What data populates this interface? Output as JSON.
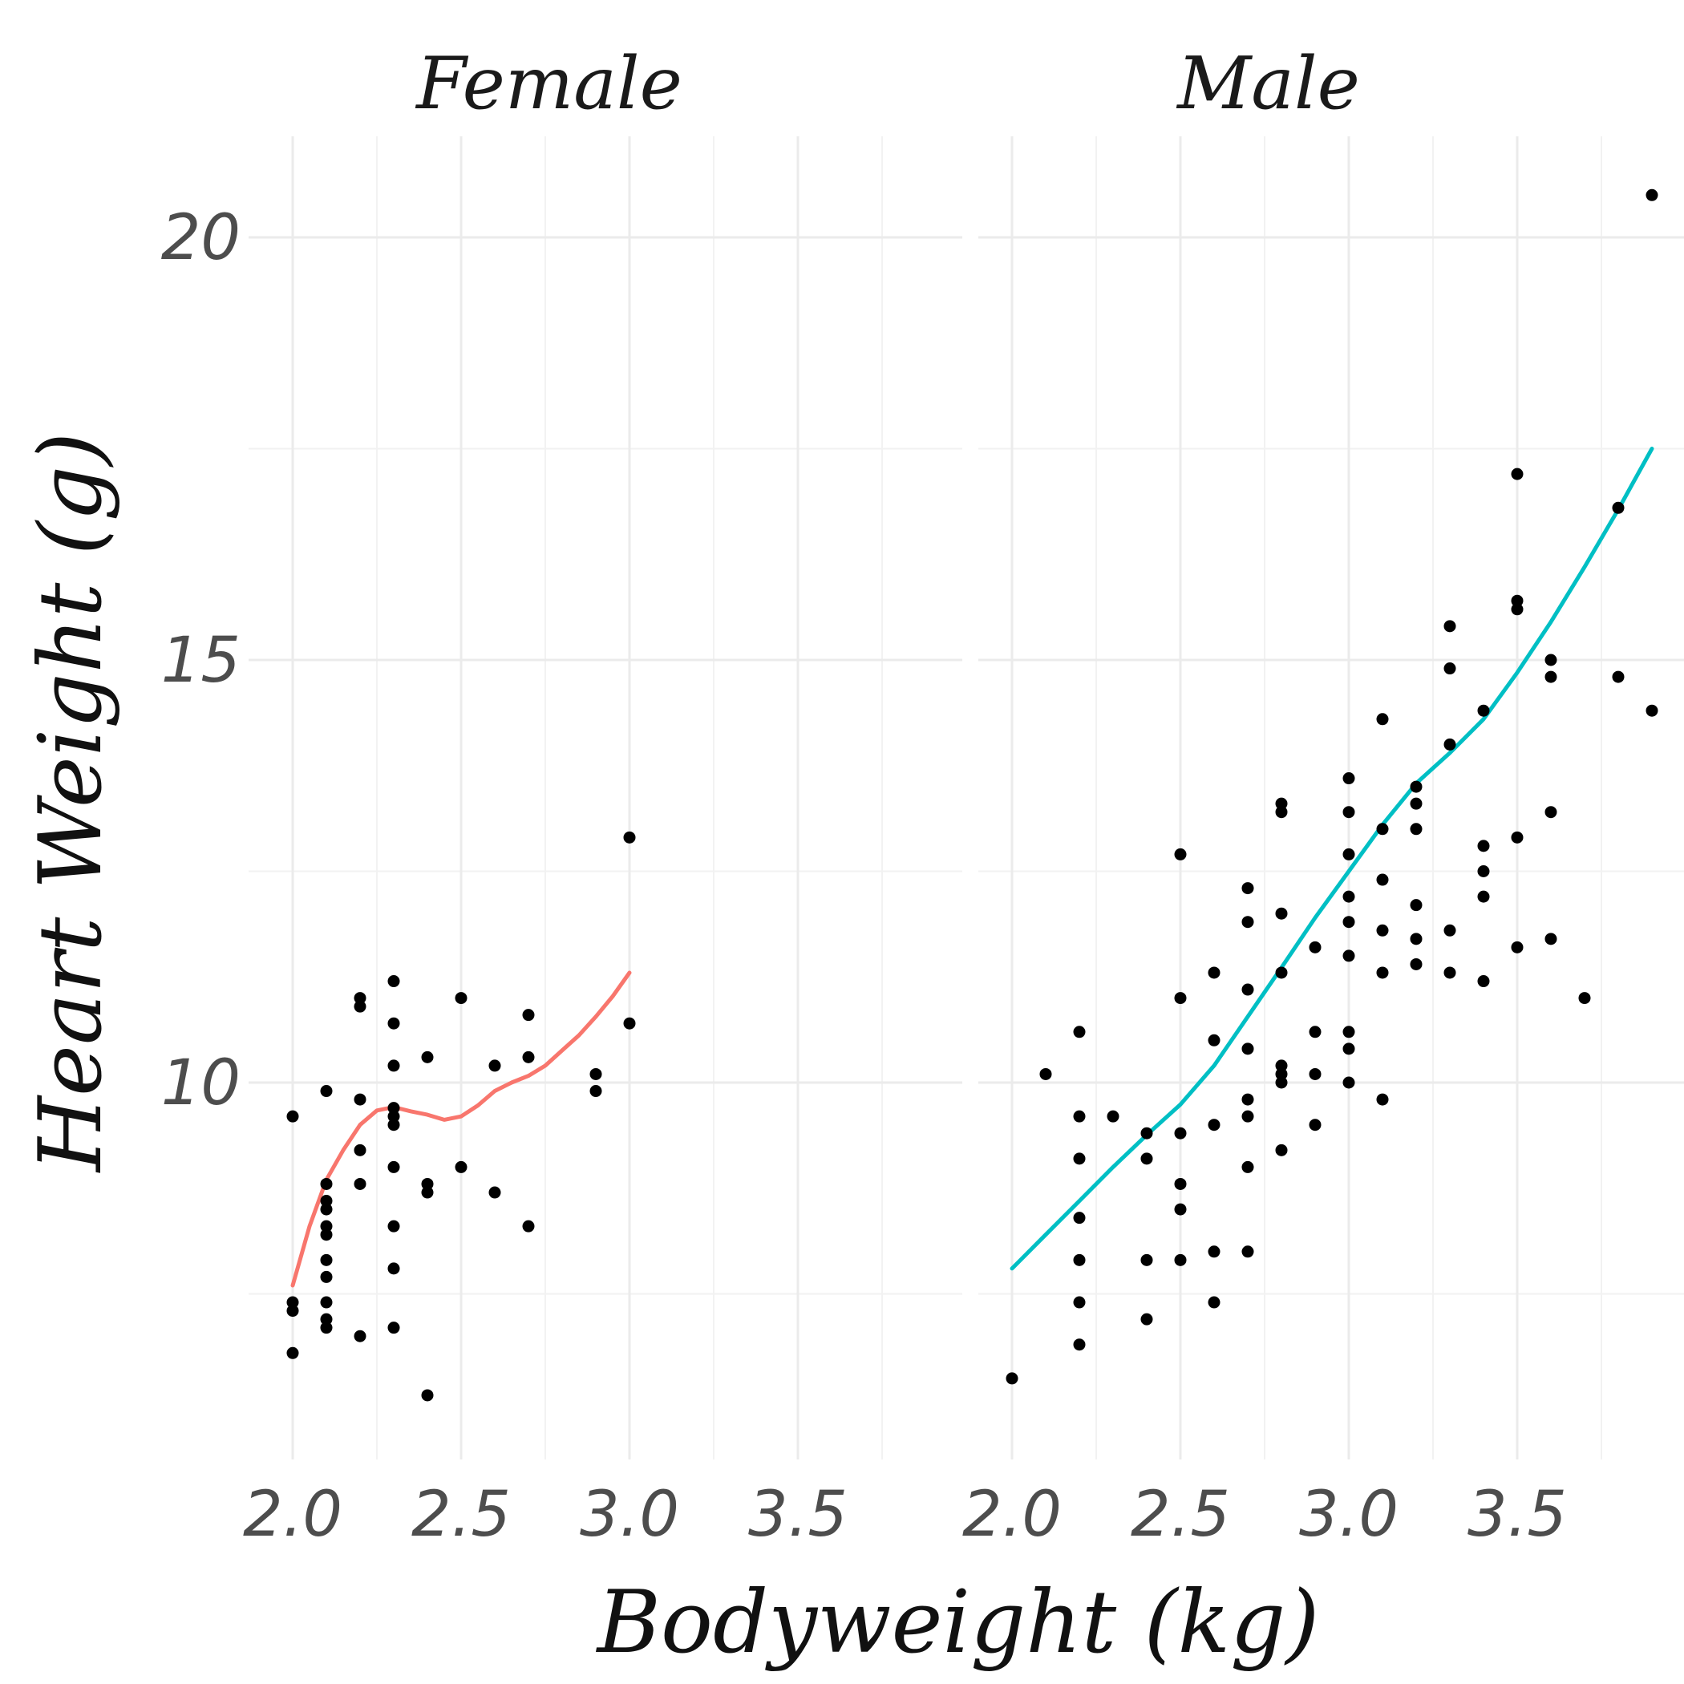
{
  "chart_data": {
    "type": "scatter",
    "xlabel": "Bodyweight (kg)",
    "ylabel": "Heart Weight (g)",
    "x_ticks": [
      "2.0",
      "2.5",
      "3.0",
      "3.5"
    ],
    "y_ticks": [
      "10",
      "15",
      "20"
    ],
    "xlim": [
      2.0,
      3.9
    ],
    "ylim": [
      6.3,
      20.5
    ],
    "grid": true,
    "facets": [
      {
        "name": "Female",
        "color": "#F8766D",
        "points": [
          [
            2.0,
            9.6
          ],
          [
            2.0,
            7.4
          ],
          [
            2.0,
            7.3
          ],
          [
            2.0,
            6.8
          ],
          [
            2.1,
            8.8
          ],
          [
            2.1,
            8.6
          ],
          [
            2.1,
            8.5
          ],
          [
            2.1,
            8.3
          ],
          [
            2.1,
            8.2
          ],
          [
            2.1,
            7.9
          ],
          [
            2.1,
            7.7
          ],
          [
            2.1,
            7.4
          ],
          [
            2.1,
            7.2
          ],
          [
            2.1,
            7.1
          ],
          [
            2.1,
            9.9
          ],
          [
            2.2,
            11.0
          ],
          [
            2.2,
            10.9
          ],
          [
            2.2,
            9.8
          ],
          [
            2.2,
            9.2
          ],
          [
            2.2,
            8.8
          ],
          [
            2.2,
            7.0
          ],
          [
            2.3,
            11.2
          ],
          [
            2.3,
            10.7
          ],
          [
            2.3,
            10.2
          ],
          [
            2.3,
            9.7
          ],
          [
            2.3,
            9.6
          ],
          [
            2.3,
            9.5
          ],
          [
            2.3,
            9.0
          ],
          [
            2.3,
            8.3
          ],
          [
            2.3,
            7.8
          ],
          [
            2.3,
            7.1
          ],
          [
            2.4,
            10.3
          ],
          [
            2.4,
            8.8
          ],
          [
            2.4,
            8.7
          ],
          [
            2.4,
            6.3
          ],
          [
            2.5,
            11.0
          ],
          [
            2.5,
            9.0
          ],
          [
            2.6,
            10.2
          ],
          [
            2.6,
            8.7
          ],
          [
            2.7,
            10.8
          ],
          [
            2.7,
            10.3
          ],
          [
            2.7,
            8.3
          ],
          [
            2.9,
            10.1
          ],
          [
            2.9,
            9.9
          ],
          [
            3.0,
            12.9
          ],
          [
            3.0,
            10.7
          ]
        ],
        "smooth": [
          [
            2.0,
            7.6
          ],
          [
            2.05,
            8.3
          ],
          [
            2.1,
            8.85
          ],
          [
            2.15,
            9.2
          ],
          [
            2.2,
            9.5
          ],
          [
            2.25,
            9.67
          ],
          [
            2.3,
            9.71
          ],
          [
            2.35,
            9.66
          ],
          [
            2.4,
            9.62
          ],
          [
            2.45,
            9.56
          ],
          [
            2.5,
            9.6
          ],
          [
            2.55,
            9.73
          ],
          [
            2.6,
            9.9
          ],
          [
            2.65,
            10.0
          ],
          [
            2.7,
            10.08
          ],
          [
            2.75,
            10.2
          ],
          [
            2.8,
            10.38
          ],
          [
            2.85,
            10.56
          ],
          [
            2.9,
            10.78
          ],
          [
            2.95,
            11.02
          ],
          [
            3.0,
            11.3
          ]
        ]
      },
      {
        "name": "Male",
        "color": "#00BFC4",
        "points": [
          [
            2.0,
            6.5
          ],
          [
            2.1,
            10.1
          ],
          [
            2.2,
            10.6
          ],
          [
            2.2,
            9.6
          ],
          [
            2.2,
            9.1
          ],
          [
            2.2,
            8.4
          ],
          [
            2.2,
            7.9
          ],
          [
            2.2,
            7.4
          ],
          [
            2.2,
            6.9
          ],
          [
            2.3,
            9.6
          ],
          [
            2.4,
            9.4
          ],
          [
            2.4,
            9.1
          ],
          [
            2.4,
            7.9
          ],
          [
            2.4,
            7.2
          ],
          [
            2.5,
            12.7
          ],
          [
            2.5,
            11.0
          ],
          [
            2.5,
            9.4
          ],
          [
            2.5,
            8.8
          ],
          [
            2.5,
            8.5
          ],
          [
            2.5,
            7.9
          ],
          [
            2.6,
            11.3
          ],
          [
            2.6,
            10.5
          ],
          [
            2.6,
            9.5
          ],
          [
            2.6,
            8.0
          ],
          [
            2.6,
            7.4
          ],
          [
            2.7,
            12.3
          ],
          [
            2.7,
            11.9
          ],
          [
            2.7,
            11.1
          ],
          [
            2.7,
            10.4
          ],
          [
            2.7,
            9.8
          ],
          [
            2.7,
            9.6
          ],
          [
            2.7,
            9.0
          ],
          [
            2.7,
            8.0
          ],
          [
            2.8,
            13.3
          ],
          [
            2.8,
            13.2
          ],
          [
            2.8,
            12.0
          ],
          [
            2.8,
            11.3
          ],
          [
            2.8,
            10.2
          ],
          [
            2.8,
            10.1
          ],
          [
            2.8,
            10.0
          ],
          [
            2.8,
            9.2
          ],
          [
            2.9,
            11.6
          ],
          [
            2.9,
            10.6
          ],
          [
            2.9,
            10.1
          ],
          [
            2.9,
            9.5
          ],
          [
            3.0,
            13.6
          ],
          [
            3.0,
            13.2
          ],
          [
            3.0,
            12.7
          ],
          [
            3.0,
            12.2
          ],
          [
            3.0,
            11.9
          ],
          [
            3.0,
            11.5
          ],
          [
            3.0,
            10.6
          ],
          [
            3.0,
            10.4
          ],
          [
            3.0,
            10.0
          ],
          [
            3.1,
            14.3
          ],
          [
            3.1,
            13.0
          ],
          [
            3.1,
            12.4
          ],
          [
            3.1,
            11.8
          ],
          [
            3.1,
            11.3
          ],
          [
            3.1,
            9.8
          ],
          [
            3.2,
            13.5
          ],
          [
            3.2,
            13.3
          ],
          [
            3.2,
            13.0
          ],
          [
            3.2,
            12.1
          ],
          [
            3.2,
            11.7
          ],
          [
            3.2,
            11.4
          ],
          [
            3.3,
            15.4
          ],
          [
            3.3,
            14.9
          ],
          [
            3.3,
            14.0
          ],
          [
            3.3,
            11.8
          ],
          [
            3.3,
            11.3
          ],
          [
            3.4,
            14.4
          ],
          [
            3.4,
            12.8
          ],
          [
            3.4,
            12.5
          ],
          [
            3.4,
            12.2
          ],
          [
            3.4,
            11.2
          ],
          [
            3.5,
            17.2
          ],
          [
            3.5,
            15.6
          ],
          [
            3.5,
            15.7
          ],
          [
            3.5,
            12.9
          ],
          [
            3.5,
            11.6
          ],
          [
            3.6,
            15.0
          ],
          [
            3.6,
            14.8
          ],
          [
            3.6,
            13.2
          ],
          [
            3.6,
            11.7
          ],
          [
            3.7,
            11.0
          ],
          [
            3.8,
            16.8
          ],
          [
            3.8,
            14.8
          ],
          [
            3.9,
            20.5
          ],
          [
            3.9,
            14.4
          ]
        ],
        "smooth": [
          [
            2.0,
            7.8
          ],
          [
            2.1,
            8.2
          ],
          [
            2.2,
            8.6
          ],
          [
            2.3,
            9.0
          ],
          [
            2.4,
            9.38
          ],
          [
            2.5,
            9.74
          ],
          [
            2.6,
            10.2
          ],
          [
            2.7,
            10.78
          ],
          [
            2.8,
            11.36
          ],
          [
            2.9,
            11.95
          ],
          [
            3.0,
            12.5
          ],
          [
            3.1,
            13.05
          ],
          [
            3.2,
            13.54
          ],
          [
            3.3,
            13.9
          ],
          [
            3.4,
            14.3
          ],
          [
            3.5,
            14.85
          ],
          [
            3.6,
            15.45
          ],
          [
            3.7,
            16.1
          ],
          [
            3.8,
            16.78
          ],
          [
            3.9,
            17.5
          ]
        ]
      }
    ]
  }
}
